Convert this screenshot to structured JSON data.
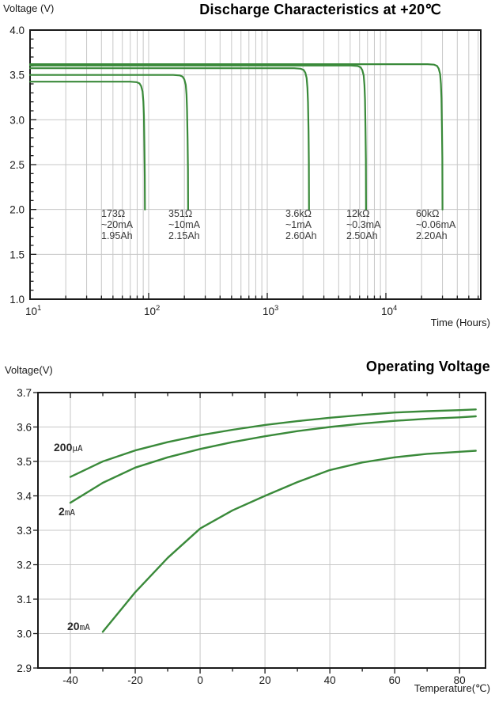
{
  "colors": {
    "curve_green": "#3a8a3a",
    "grid_gray": "#c7c7c7",
    "axis_black": "#1a1a1a",
    "label_gray": "#3a3a3a"
  },
  "discharge_chart": {
    "title": "Discharge Characteristics at +20℃",
    "y_axis_label": "Voltage (V)",
    "x_axis_label": "Time (Hours)",
    "y_tick_labels": [
      "4.0",
      "3.5",
      "3.0",
      "2.5",
      "2.0",
      "1.5",
      "1.0"
    ],
    "x_decade_exponents": [
      "1",
      "2",
      "3",
      "4"
    ],
    "y_range": [
      1.0,
      4.0
    ],
    "x_log_range_hours": [
      10,
      63000
    ],
    "cutoff_voltage": 2.0,
    "grid": true,
    "chart_type": "line",
    "curves": [
      {
        "load": "173Ω",
        "current": "~20mA",
        "capacity": "1.95Ah",
        "plateau_v": 3.425,
        "end_hours": 93
      },
      {
        "load": "351Ω",
        "current": "~10mA",
        "capacity": "2.15Ah",
        "plateau_v": 3.5,
        "end_hours": 215
      },
      {
        "load": "3.6kΩ",
        "current": "~1mA",
        "capacity": "2.60Ah",
        "plateau_v": 3.575,
        "end_hours": 2250
      },
      {
        "load": "12kΩ",
        "current": "~0.3mA",
        "capacity": "2.50Ah",
        "plateau_v": 3.605,
        "end_hours": 6800
      },
      {
        "load": "60kΩ",
        "current": "~0.06mA",
        "capacity": "2.20Ah",
        "plateau_v": 3.62,
        "end_hours": 30000
      }
    ]
  },
  "operating_chart": {
    "title": "Operating Voltage",
    "y_axis_label": "Voltage(V)",
    "x_axis_label": "Temperature(℃)",
    "y_tick_labels": [
      "3.7",
      "3.6",
      "3.5",
      "3.4",
      "3.3",
      "3.2",
      "3.1",
      "3.0",
      "2.9"
    ],
    "x_tick_labels": [
      "-40",
      "-20",
      "0",
      "20",
      "40",
      "60",
      "80"
    ],
    "x_tick_values": [
      -40,
      -20,
      0,
      20,
      40,
      60,
      80
    ],
    "y_range": [
      2.9,
      3.7
    ],
    "x_range": [
      -50,
      88
    ],
    "grid": true,
    "chart_type": "line",
    "series": [
      {
        "label_value": "200",
        "label_unit": "μA",
        "points": [
          [
            -40,
            3.455
          ],
          [
            -30,
            3.5
          ],
          [
            -20,
            3.532
          ],
          [
            -10,
            3.556
          ],
          [
            0,
            3.576
          ],
          [
            10,
            3.592
          ],
          [
            20,
            3.606
          ],
          [
            30,
            3.617
          ],
          [
            40,
            3.627
          ],
          [
            50,
            3.635
          ],
          [
            60,
            3.642
          ],
          [
            70,
            3.646
          ],
          [
            80,
            3.649
          ],
          [
            85,
            3.651
          ]
        ]
      },
      {
        "label_value": "2",
        "label_unit": "mA",
        "points": [
          [
            -40,
            3.38
          ],
          [
            -30,
            3.438
          ],
          [
            -20,
            3.482
          ],
          [
            -10,
            3.512
          ],
          [
            0,
            3.536
          ],
          [
            10,
            3.556
          ],
          [
            20,
            3.573
          ],
          [
            30,
            3.588
          ],
          [
            40,
            3.6
          ],
          [
            50,
            3.61
          ],
          [
            60,
            3.618
          ],
          [
            70,
            3.624
          ],
          [
            80,
            3.628
          ],
          [
            85,
            3.631
          ]
        ]
      },
      {
        "label_value": "20",
        "label_unit": "mA",
        "points": [
          [
            -30,
            3.005
          ],
          [
            -20,
            3.12
          ],
          [
            -10,
            3.22
          ],
          [
            0,
            3.305
          ],
          [
            10,
            3.358
          ],
          [
            20,
            3.4
          ],
          [
            30,
            3.44
          ],
          [
            40,
            3.475
          ],
          [
            50,
            3.497
          ],
          [
            60,
            3.512
          ],
          [
            70,
            3.522
          ],
          [
            80,
            3.528
          ],
          [
            85,
            3.531
          ]
        ]
      }
    ]
  }
}
